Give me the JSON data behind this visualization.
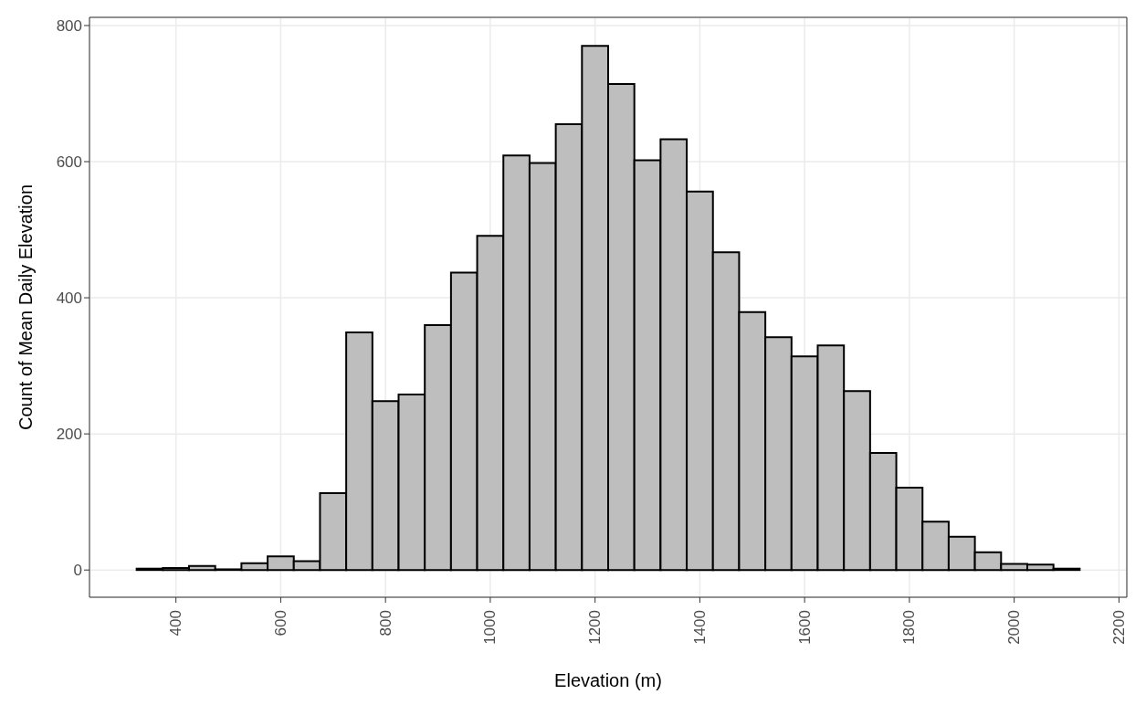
{
  "chart_data": {
    "type": "histogram",
    "xlabel": "Elevation (m)",
    "ylabel": "Count of Mean Daily Elevation",
    "bins": [
      325,
      375,
      425,
      475,
      525,
      575,
      625,
      675,
      725,
      775,
      825,
      875,
      925,
      975,
      1025,
      1075,
      1125,
      1175,
      1225,
      1275,
      1325,
      1375,
      1425,
      1475,
      1525,
      1575,
      1625,
      1675,
      1725,
      1775,
      1825,
      1875,
      1925,
      1975,
      2025,
      2075,
      2125
    ],
    "values": [
      2,
      3,
      6,
      1,
      10,
      20,
      13,
      113,
      349,
      248,
      258,
      360,
      437,
      491,
      609,
      598,
      655,
      770,
      714,
      602,
      633,
      556,
      467,
      379,
      342,
      314,
      330,
      263,
      172,
      121,
      71,
      49,
      26,
      9,
      8,
      2
    ],
    "color": "#bebebe",
    "xlim": [
      235,
      2215
    ],
    "xticks": [
      400,
      600,
      800,
      1000,
      1200,
      1400,
      1600,
      1800,
      2000,
      2200
    ],
    "ylim": [
      -40,
      812
    ],
    "yticks": [
      0,
      200,
      400,
      600,
      800
    ],
    "grid": true
  }
}
